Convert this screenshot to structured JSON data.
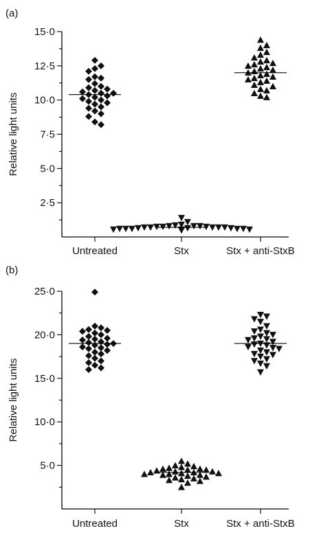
{
  "chart_data": [
    {
      "type": "scatter",
      "panel_label": "(a)",
      "ylabel": "Relative light units",
      "ylim": [
        0,
        15
      ],
      "yticks": [
        "15·0",
        "12·5",
        "10·0",
        "7·5",
        "5·0",
        "2·5"
      ],
      "categories": [
        "Untreated",
        "Stx",
        "Stx + anti-StxB"
      ],
      "groups": [
        {
          "marker": "diamond",
          "mean": 10.4,
          "values": [
            12.9,
            12.5,
            12.3,
            12.1,
            11.7,
            11.6,
            11.5,
            11.2,
            11.0,
            10.9,
            10.8,
            10.7,
            10.6,
            10.5,
            10.5,
            10.4,
            10.3,
            10.2,
            10.1,
            10.0,
            9.9,
            9.7,
            9.5,
            9.4,
            9.2,
            9.0,
            8.8,
            8.4,
            8.2,
            9.8
          ]
        },
        {
          "marker": "triangle-down",
          "mean": 0.7,
          "values": [
            1.4,
            1.1,
            0.9,
            0.85,
            0.8,
            0.8,
            0.75,
            0.75,
            0.7,
            0.7,
            0.7,
            0.7,
            0.65,
            0.65,
            0.65,
            0.6,
            0.6,
            0.6,
            0.6,
            0.55,
            0.55,
            0.55,
            0.5,
            0.5,
            0.5,
            0.5,
            0.7,
            0.75,
            0.8,
            0.6
          ]
        },
        {
          "marker": "triangle-up",
          "mean": 12.0,
          "values": [
            14.4,
            14.0,
            13.8,
            13.5,
            13.3,
            13.1,
            12.9,
            12.8,
            12.7,
            12.5,
            12.4,
            12.3,
            12.2,
            12.1,
            12.0,
            11.9,
            11.8,
            11.7,
            11.6,
            11.5,
            11.3,
            11.1,
            11.0,
            10.8,
            10.7,
            10.5,
            10.3,
            10.2,
            12.6,
            11.4
          ]
        }
      ]
    },
    {
      "type": "scatter",
      "panel_label": "(b)",
      "ylabel": "Relative light units",
      "ylim": [
        0,
        25
      ],
      "yticks": [
        "25·0",
        "20·0",
        "15·0",
        "10·0",
        "5·0"
      ],
      "categories": [
        "Untreated",
        "Stx",
        "Stx + anti-StxB"
      ],
      "groups": [
        {
          "marker": "diamond",
          "mean": 19.0,
          "values": [
            24.9,
            21.0,
            20.8,
            20.6,
            20.4,
            20.2,
            20.0,
            19.8,
            19.6,
            19.4,
            19.2,
            19.1,
            19.0,
            18.9,
            18.8,
            18.6,
            18.4,
            18.2,
            18.0,
            17.8,
            17.6,
            17.3,
            17.0,
            16.8,
            16.5,
            16.2,
            16.0,
            20.5,
            19.5,
            18.5
          ]
        },
        {
          "marker": "triangle-up",
          "mean": 4.2,
          "values": [
            5.5,
            5.2,
            5.0,
            4.9,
            4.8,
            4.7,
            4.6,
            4.5,
            4.4,
            4.3,
            4.3,
            4.2,
            4.2,
            4.1,
            4.0,
            4.0,
            3.9,
            3.8,
            3.7,
            3.6,
            3.5,
            3.4,
            3.2,
            3.0,
            2.5,
            4.5,
            4.1,
            3.9,
            4.6,
            3.3
          ]
        },
        {
          "marker": "triangle-down",
          "mean": 19.0,
          "values": [
            22.3,
            22.1,
            21.5,
            21.0,
            20.6,
            20.2,
            20.0,
            19.8,
            19.6,
            19.4,
            19.2,
            19.0,
            18.9,
            18.8,
            18.6,
            18.4,
            18.2,
            18.0,
            17.7,
            17.5,
            17.2,
            17.0,
            16.7,
            16.4,
            15.7,
            21.8,
            20.4,
            19.5,
            18.5,
            17.8
          ]
        }
      ]
    }
  ]
}
